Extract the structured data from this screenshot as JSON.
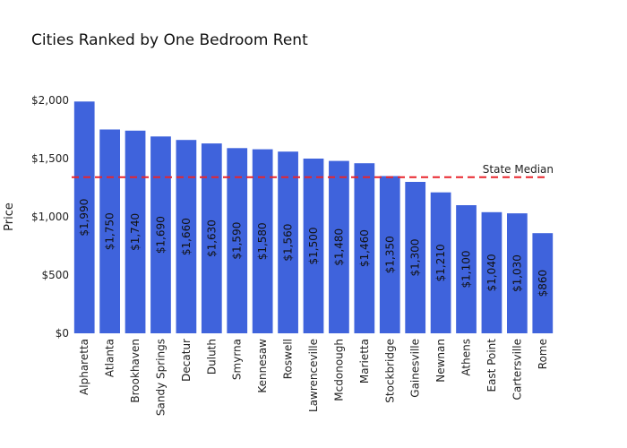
{
  "chart_data": {
    "type": "bar",
    "title": "Cities Ranked by One Bedroom Rent",
    "xlabel": "",
    "ylabel": "Price",
    "categories": [
      "Alpharetta",
      "Atlanta",
      "Brookhaven",
      "Sandy Springs",
      "Decatur",
      "Duluth",
      "Smyrna",
      "Kennesaw",
      "Roswell",
      "Lawrenceville",
      "Mcdonough",
      "Marietta",
      "Stockbridge",
      "Gainesville",
      "Newnan",
      "Athens",
      "East Point",
      "Cartersville",
      "Rome"
    ],
    "values": [
      1990,
      1750,
      1740,
      1690,
      1660,
      1630,
      1590,
      1580,
      1560,
      1500,
      1480,
      1460,
      1350,
      1300,
      1210,
      1100,
      1040,
      1030,
      860
    ],
    "data_labels": [
      "$1,990",
      "$1,750",
      "$1,740",
      "$1,690",
      "$1,660",
      "$1,630",
      "$1,590",
      "$1,580",
      "$1,560",
      "$1,500",
      "$1,480",
      "$1,460",
      "$1,350",
      "$1,300",
      "$1,210",
      "$1,100",
      "$1,040",
      "$1,030",
      "$860"
    ],
    "ylim": [
      0,
      2000
    ],
    "yticks": [
      0,
      500,
      1000,
      1500,
      2000
    ],
    "ytick_labels": [
      "$0",
      "$500",
      "$1,000",
      "$1,500",
      "$2,000"
    ],
    "grid": false,
    "legend": "none",
    "bar_color": "#3f63dc",
    "reference_line": {
      "label": "State Median",
      "value": 1340,
      "color": "#e8242b",
      "style": "dashed"
    }
  }
}
